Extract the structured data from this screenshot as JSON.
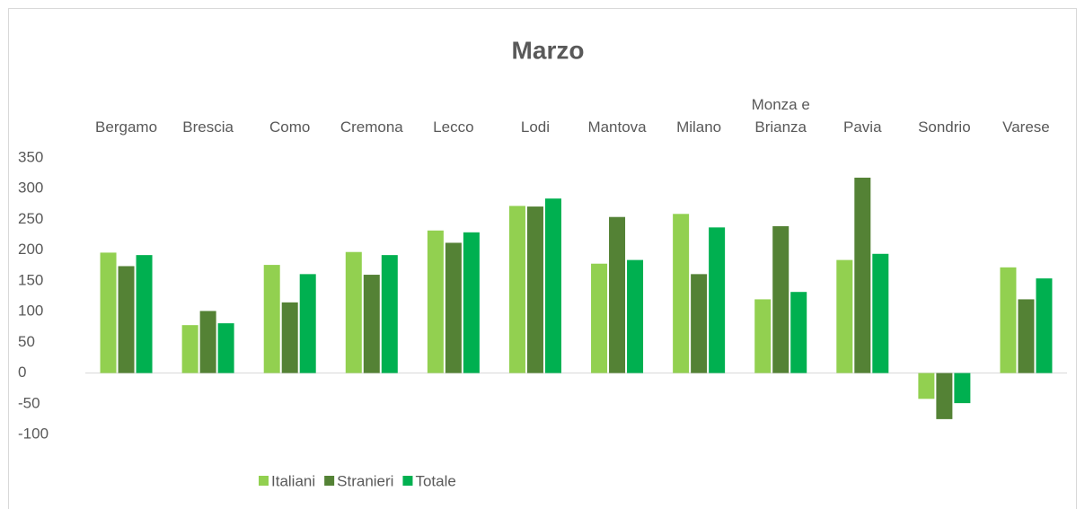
{
  "chart_data": {
    "type": "bar",
    "title": "Marzo",
    "categories": [
      "Bergamo",
      "Brescia",
      "Como",
      "Cremona",
      "Lecco",
      "Lodi",
      "Mantova",
      "Milano",
      "Monza e Brianza",
      "Pavia",
      "Sondrio",
      "Varese"
    ],
    "series": [
      {
        "name": "Italiani",
        "color": "#92d050",
        "values": [
          196,
          78,
          176,
          197,
          232,
          272,
          178,
          259,
          120,
          184,
          -42,
          172
        ]
      },
      {
        "name": "Stranieri",
        "color": "#548235",
        "values": [
          174,
          101,
          115,
          160,
          212,
          271,
          254,
          161,
          239,
          318,
          -75,
          120
        ]
      },
      {
        "name": "Totale",
        "color": "#00b050",
        "values": [
          192,
          81,
          161,
          192,
          229,
          284,
          184,
          237,
          132,
          194,
          -49,
          154
        ]
      }
    ],
    "ylim": [
      -100,
      350
    ],
    "yticks": [
      -100,
      -50,
      0,
      50,
      100,
      150,
      200,
      250,
      300,
      350
    ],
    "grid": false,
    "legend": "bottom"
  }
}
